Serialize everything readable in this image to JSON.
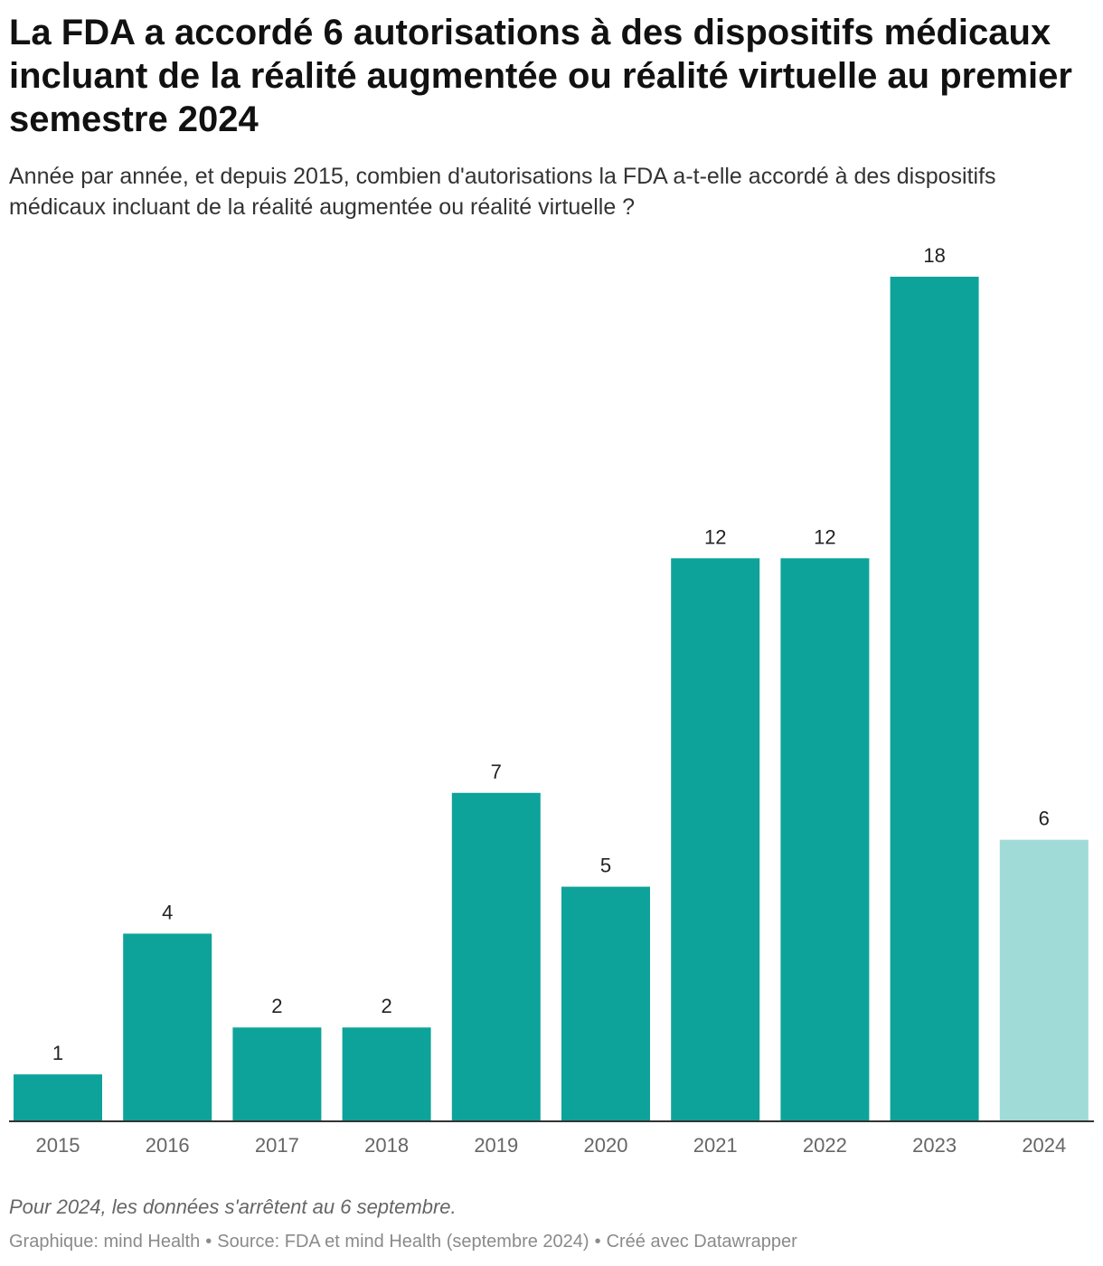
{
  "header": {
    "title": "La FDA a accordé 6 autorisations à des dispositifs médicaux incluant de la réalité augmentée ou réalité virtuelle au premier semestre 2024",
    "subtitle": "Année par année, et depuis 2015, combien d'autorisations la FDA a-t-elle accordé à des dispositifs médicaux incluant de la réalité augmentée ou réalité virtuelle ?"
  },
  "chart_data": {
    "type": "bar",
    "title": "La FDA a accordé 6 autorisations à des dispositifs médicaux incluant de la réalité augmentée ou réalité virtuelle au premier semestre 2024",
    "categories": [
      "2015",
      "2016",
      "2017",
      "2018",
      "2019",
      "2020",
      "2021",
      "2022",
      "2023",
      "2024"
    ],
    "values": [
      1,
      4,
      2,
      2,
      7,
      5,
      12,
      12,
      18,
      6
    ],
    "highlight_category": "2024",
    "ylim": [
      0,
      18
    ],
    "grid": false,
    "legend": "none",
    "colors": {
      "bar": "#0ea39a",
      "bar_partial": "#a0dbd8",
      "baseline": "#333333"
    }
  },
  "footer": {
    "note": "Pour 2024, les données s'arrêtent au 6 septembre.",
    "graphic": "Graphique: mind Health",
    "source": "Source: FDA et mind Health (septembre 2024)",
    "created": "Créé avec Datawrapper",
    "separator": "•"
  }
}
